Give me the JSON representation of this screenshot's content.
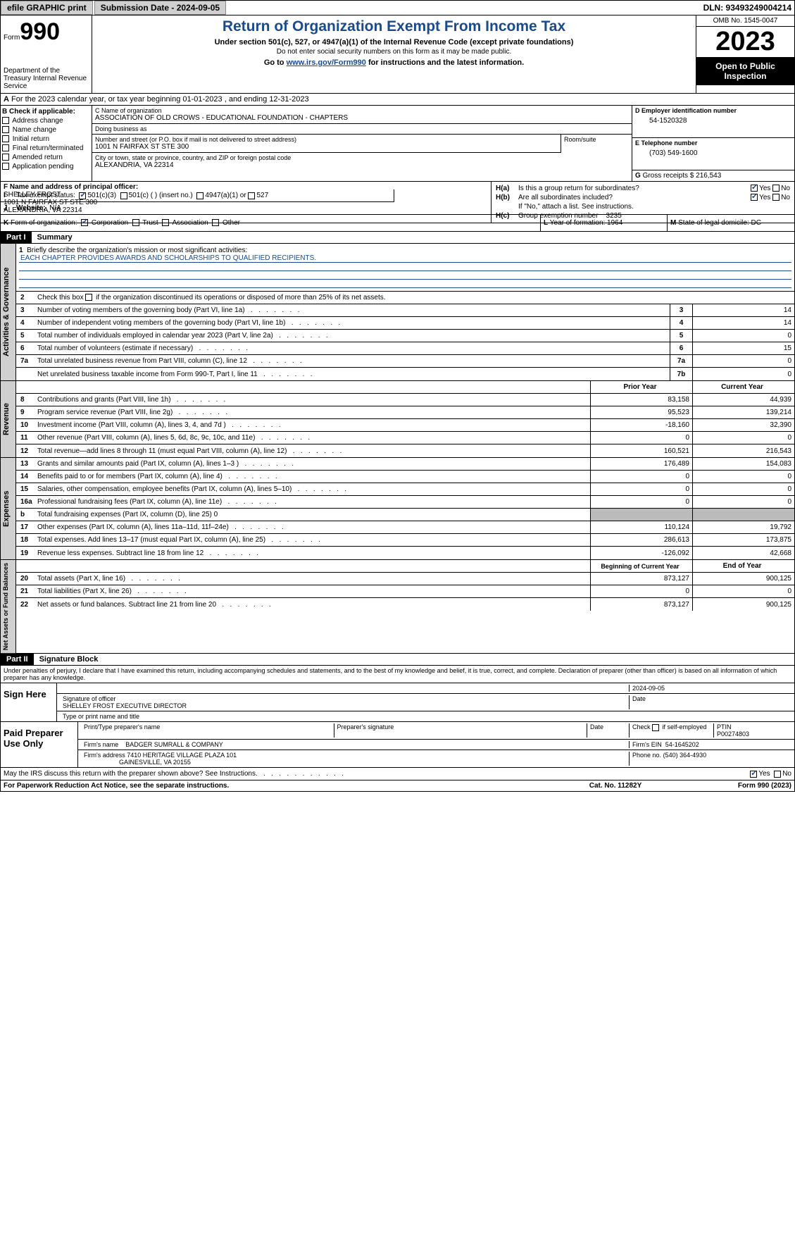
{
  "topbar": {
    "efile_btn": "efile GRAPHIC print",
    "submission_label": "Submission Date - 2024-09-05",
    "dln_label": "DLN: 93493249004214"
  },
  "header": {
    "form_label": "Form",
    "form_num": "990",
    "dept": "Department of the Treasury\nInternal Revenue Service",
    "title": "Return of Organization Exempt From Income Tax",
    "subtitle": "Under section 501(c), 527, or 4947(a)(1) of the Internal Revenue Code (except private foundations)",
    "ssn_note": "Do not enter social security numbers on this form as it may be made public.",
    "goto": "Go to ",
    "goto_link": "www.irs.gov/Form990",
    "goto_after": " for instructions and the latest information.",
    "omb": "OMB No. 1545-0047",
    "year": "2023",
    "inspect": "Open to Public Inspection"
  },
  "row_a": {
    "prefix": "A",
    "text": "  For the 2023 calendar year, or tax year beginning 01-01-2023    , and ending 12-31-2023"
  },
  "col_b": {
    "hdr": "B Check if applicable:",
    "items": [
      "Address change",
      "Name change",
      "Initial return",
      "Final return/terminated",
      "Amended return",
      "Application pending"
    ]
  },
  "col_c": {
    "name_lbl": "C Name of organization",
    "name": "ASSOCIATION OF OLD CROWS - EDUCATIONAL FOUNDATION - CHAPTERS",
    "dba_lbl": "Doing business as",
    "dba": "",
    "street_lbl": "Number and street (or P.O. box if mail is not delivered to street address)",
    "street": "1001 N FAIRFAX ST STE 300",
    "room_lbl": "Room/suite",
    "city_lbl": "City or town, state or province, country, and ZIP or foreign postal code",
    "city": "ALEXANDRIA, VA  22314"
  },
  "col_d": {
    "lbl": "D Employer identification number",
    "val": "54-1520328"
  },
  "col_e": {
    "lbl": "E Telephone number",
    "val": "(703) 549-1600"
  },
  "col_g": {
    "lbl": "G",
    "txt": "Gross receipts $ 216,543"
  },
  "col_f": {
    "lbl": "F  Name and address of principal officer:",
    "name": "SHELLEY FROST",
    "addr1": "1001 N FAIRFAX ST STE 300",
    "addr2": "ALEXANDRIA, VA  22314"
  },
  "col_h": {
    "ha_lbl": "H(a)",
    "ha_txt": "Is this a group return for subordinates?",
    "hb_lbl": "H(b)",
    "hb_txt": "Are all subordinates included?",
    "hb_note": "If \"No,\" attach a list. See instructions.",
    "hc_lbl": "H(c)",
    "hc_txt": "Group exemption number",
    "hc_val": "3235",
    "yes": "Yes",
    "no": "No"
  },
  "row_i": {
    "lbl": "I",
    "txt": "Tax-exempt status:",
    "opts": [
      "501(c)(3)",
      "501(c) (  ) (insert no.)",
      "4947(a)(1) or",
      "527"
    ]
  },
  "row_j": {
    "lbl": "J",
    "txt": "Website:",
    "val": "N/A"
  },
  "row_k": {
    "lbl": "K",
    "txt": "Form of organization:",
    "opts": [
      "Corporation",
      "Trust",
      "Association",
      "Other"
    ]
  },
  "row_l": {
    "lbl": "L",
    "txt": "Year of formation: 1964"
  },
  "row_m": {
    "lbl": "M",
    "txt": "State of legal domicile: DC"
  },
  "part1": {
    "hdr": "Part I",
    "title": "Summary",
    "line1_lbl": "1",
    "line1_txt": "Briefly describe the organization's mission or most significant activities:",
    "mission": "EACH CHAPTER PROVIDES AWARDS AND SCHOLARSHIPS TO QUALIFIED RECIPIENTS.",
    "line2": "Check this box       if the organization discontinued its operations or disposed of more than 25% of its net assets.",
    "gov_rows": [
      {
        "n": "3",
        "d": "Number of voting members of the governing body (Part VI, line 1a)",
        "b": "3",
        "v": "14"
      },
      {
        "n": "4",
        "d": "Number of independent voting members of the governing body (Part VI, line 1b)",
        "b": "4",
        "v": "14"
      },
      {
        "n": "5",
        "d": "Total number of individuals employed in calendar year 2023 (Part V, line 2a)",
        "b": "5",
        "v": "0"
      },
      {
        "n": "6",
        "d": "Total number of volunteers (estimate if necessary)",
        "b": "6",
        "v": "15"
      },
      {
        "n": "7a",
        "d": "Total unrelated business revenue from Part VIII, column (C), line 12",
        "b": "7a",
        "v": "0"
      },
      {
        "n": "",
        "d": "Net unrelated business taxable income from Form 990-T, Part I, line 11",
        "b": "7b",
        "v": "0"
      }
    ],
    "rev_hdr": {
      "py": "Prior Year",
      "cy": "Current Year"
    },
    "rev_rows": [
      {
        "n": "8",
        "d": "Contributions and grants (Part VIII, line 1h)",
        "py": "83,158",
        "cy": "44,939"
      },
      {
        "n": "9",
        "d": "Program service revenue (Part VIII, line 2g)",
        "py": "95,523",
        "cy": "139,214"
      },
      {
        "n": "10",
        "d": "Investment income (Part VIII, column (A), lines 3, 4, and 7d )",
        "py": "-18,160",
        "cy": "32,390"
      },
      {
        "n": "11",
        "d": "Other revenue (Part VIII, column (A), lines 5, 6d, 8c, 9c, 10c, and 11e)",
        "py": "0",
        "cy": "0"
      },
      {
        "n": "12",
        "d": "Total revenue—add lines 8 through 11 (must equal Part VIII, column (A), line 12)",
        "py": "160,521",
        "cy": "216,543"
      }
    ],
    "exp_rows": [
      {
        "n": "13",
        "d": "Grants and similar amounts paid (Part IX, column (A), lines 1–3 )",
        "py": "176,489",
        "cy": "154,083"
      },
      {
        "n": "14",
        "d": "Benefits paid to or for members (Part IX, column (A), line 4)",
        "py": "0",
        "cy": "0"
      },
      {
        "n": "15",
        "d": "Salaries, other compensation, employee benefits (Part IX, column (A), lines 5–10)",
        "py": "0",
        "cy": "0"
      },
      {
        "n": "16a",
        "d": "Professional fundraising fees (Part IX, column (A), line 11e)",
        "py": "0",
        "cy": "0"
      },
      {
        "n": "b",
        "d": "Total fundraising expenses (Part IX, column (D), line 25) 0",
        "py": "",
        "cy": "",
        "grey": true
      },
      {
        "n": "17",
        "d": "Other expenses (Part IX, column (A), lines 11a–11d, 11f–24e)",
        "py": "110,124",
        "cy": "19,792"
      },
      {
        "n": "18",
        "d": "Total expenses. Add lines 13–17 (must equal Part IX, column (A), line 25)",
        "py": "286,613",
        "cy": "173,875"
      },
      {
        "n": "19",
        "d": "Revenue less expenses. Subtract line 18 from line 12",
        "py": "-126,092",
        "cy": "42,668"
      }
    ],
    "na_hdr": {
      "py": "Beginning of Current Year",
      "cy": "End of Year"
    },
    "na_rows": [
      {
        "n": "20",
        "d": "Total assets (Part X, line 16)",
        "py": "873,127",
        "cy": "900,125"
      },
      {
        "n": "21",
        "d": "Total liabilities (Part X, line 26)",
        "py": "0",
        "cy": "0"
      },
      {
        "n": "22",
        "d": "Net assets or fund balances. Subtract line 21 from line 20",
        "py": "873,127",
        "cy": "900,125"
      }
    ],
    "side_labels": {
      "gov": "Activities & Governance",
      "rev": "Revenue",
      "exp": "Expenses",
      "na": "Net Assets or Fund Balances"
    }
  },
  "part2": {
    "hdr": "Part II",
    "title": "Signature Block",
    "declaration": "Under penalties of perjury, I declare that I have examined this return, including accompanying schedules and statements, and to the best of my knowledge and belief, it is true, correct, and complete. Declaration of preparer (other than officer) is based on all information of which preparer has any knowledge."
  },
  "sign": {
    "left": "Sign Here",
    "date": "2024-09-05",
    "sig_lbl": "Signature of officer",
    "date_lbl": "Date",
    "officer": "SHELLEY FROST EXECUTIVE DIRECTOR",
    "type_lbl": "Type or print name and title"
  },
  "paid": {
    "left": "Paid Preparer Use Only",
    "name_lbl": "Print/Type preparer's name",
    "sig_lbl": "Preparer's signature",
    "date_lbl": "Date",
    "check_lbl": "Check        if self-employed",
    "ptin_lbl": "PTIN",
    "ptin": "P00274803",
    "firm_name_lbl": "Firm's name",
    "firm_name": "BADGER SUMRALL & COMPANY",
    "firm_ein_lbl": "Firm's EIN",
    "firm_ein": "54-1645202",
    "firm_addr_lbl": "Firm's address",
    "firm_addr": "7410 HERITAGE VILLAGE PLAZA 101",
    "firm_city": "GAINESVILLE, VA  20155",
    "phone_lbl": "Phone no.",
    "phone": "(540) 364-4930"
  },
  "discuss": {
    "txt": "May the IRS discuss this return with the preparer shown above? See Instructions.",
    "yes": "Yes",
    "no": "No"
  },
  "footer": {
    "left": "For Paperwork Reduction Act Notice, see the separate instructions.",
    "mid": "Cat. No. 11282Y",
    "right_a": "Form ",
    "right_b": "990",
    "right_c": " (2023)"
  }
}
